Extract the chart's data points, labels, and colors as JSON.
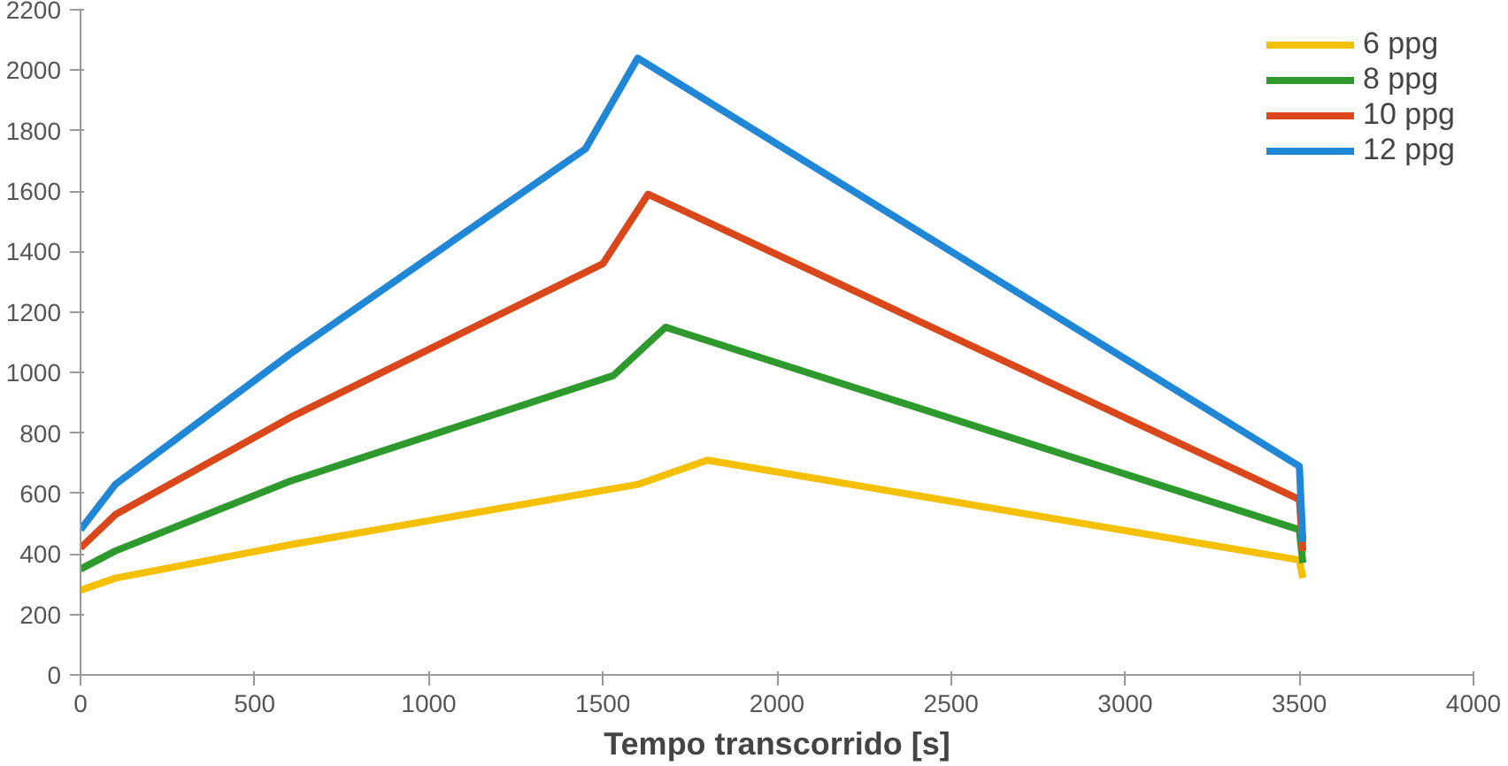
{
  "chart_data": {
    "type": "line",
    "xlabel": "Tempo transcorrido [s]",
    "xlim": [
      0,
      4000
    ],
    "xticks": [
      0,
      500,
      1000,
      1500,
      2000,
      2500,
      3000,
      3500,
      4000
    ],
    "ylim": [
      0,
      2200
    ],
    "yticks": [
      0,
      200,
      400,
      600,
      800,
      1000,
      1200,
      1400,
      1600,
      1800,
      2000,
      2200
    ],
    "grid": false,
    "legend": "top right",
    "line_style": "solid",
    "marker": "none",
    "series": [
      {
        "name": "6 ppg",
        "color": "#f5c000",
        "x": [
          0,
          100,
          600,
          1600,
          1800,
          3500,
          3510
        ],
        "values": [
          280,
          320,
          430,
          630,
          710,
          380,
          320
        ]
      },
      {
        "name": "8 ppg",
        "color": "#2e9a2e",
        "x": [
          0,
          100,
          600,
          1530,
          1680,
          3500,
          3510
        ],
        "values": [
          350,
          410,
          640,
          990,
          1150,
          480,
          370
        ]
      },
      {
        "name": "10 ppg",
        "color": "#d9471a",
        "x": [
          0,
          100,
          600,
          1500,
          1630,
          3500,
          3510
        ],
        "values": [
          420,
          530,
          850,
          1360,
          1590,
          580,
          410
        ]
      },
      {
        "name": "12 ppg",
        "color": "#1f87d6",
        "x": [
          0,
          100,
          600,
          1450,
          1600,
          3500,
          3510
        ],
        "values": [
          480,
          630,
          1060,
          1740,
          2040,
          690,
          440
        ]
      }
    ]
  }
}
